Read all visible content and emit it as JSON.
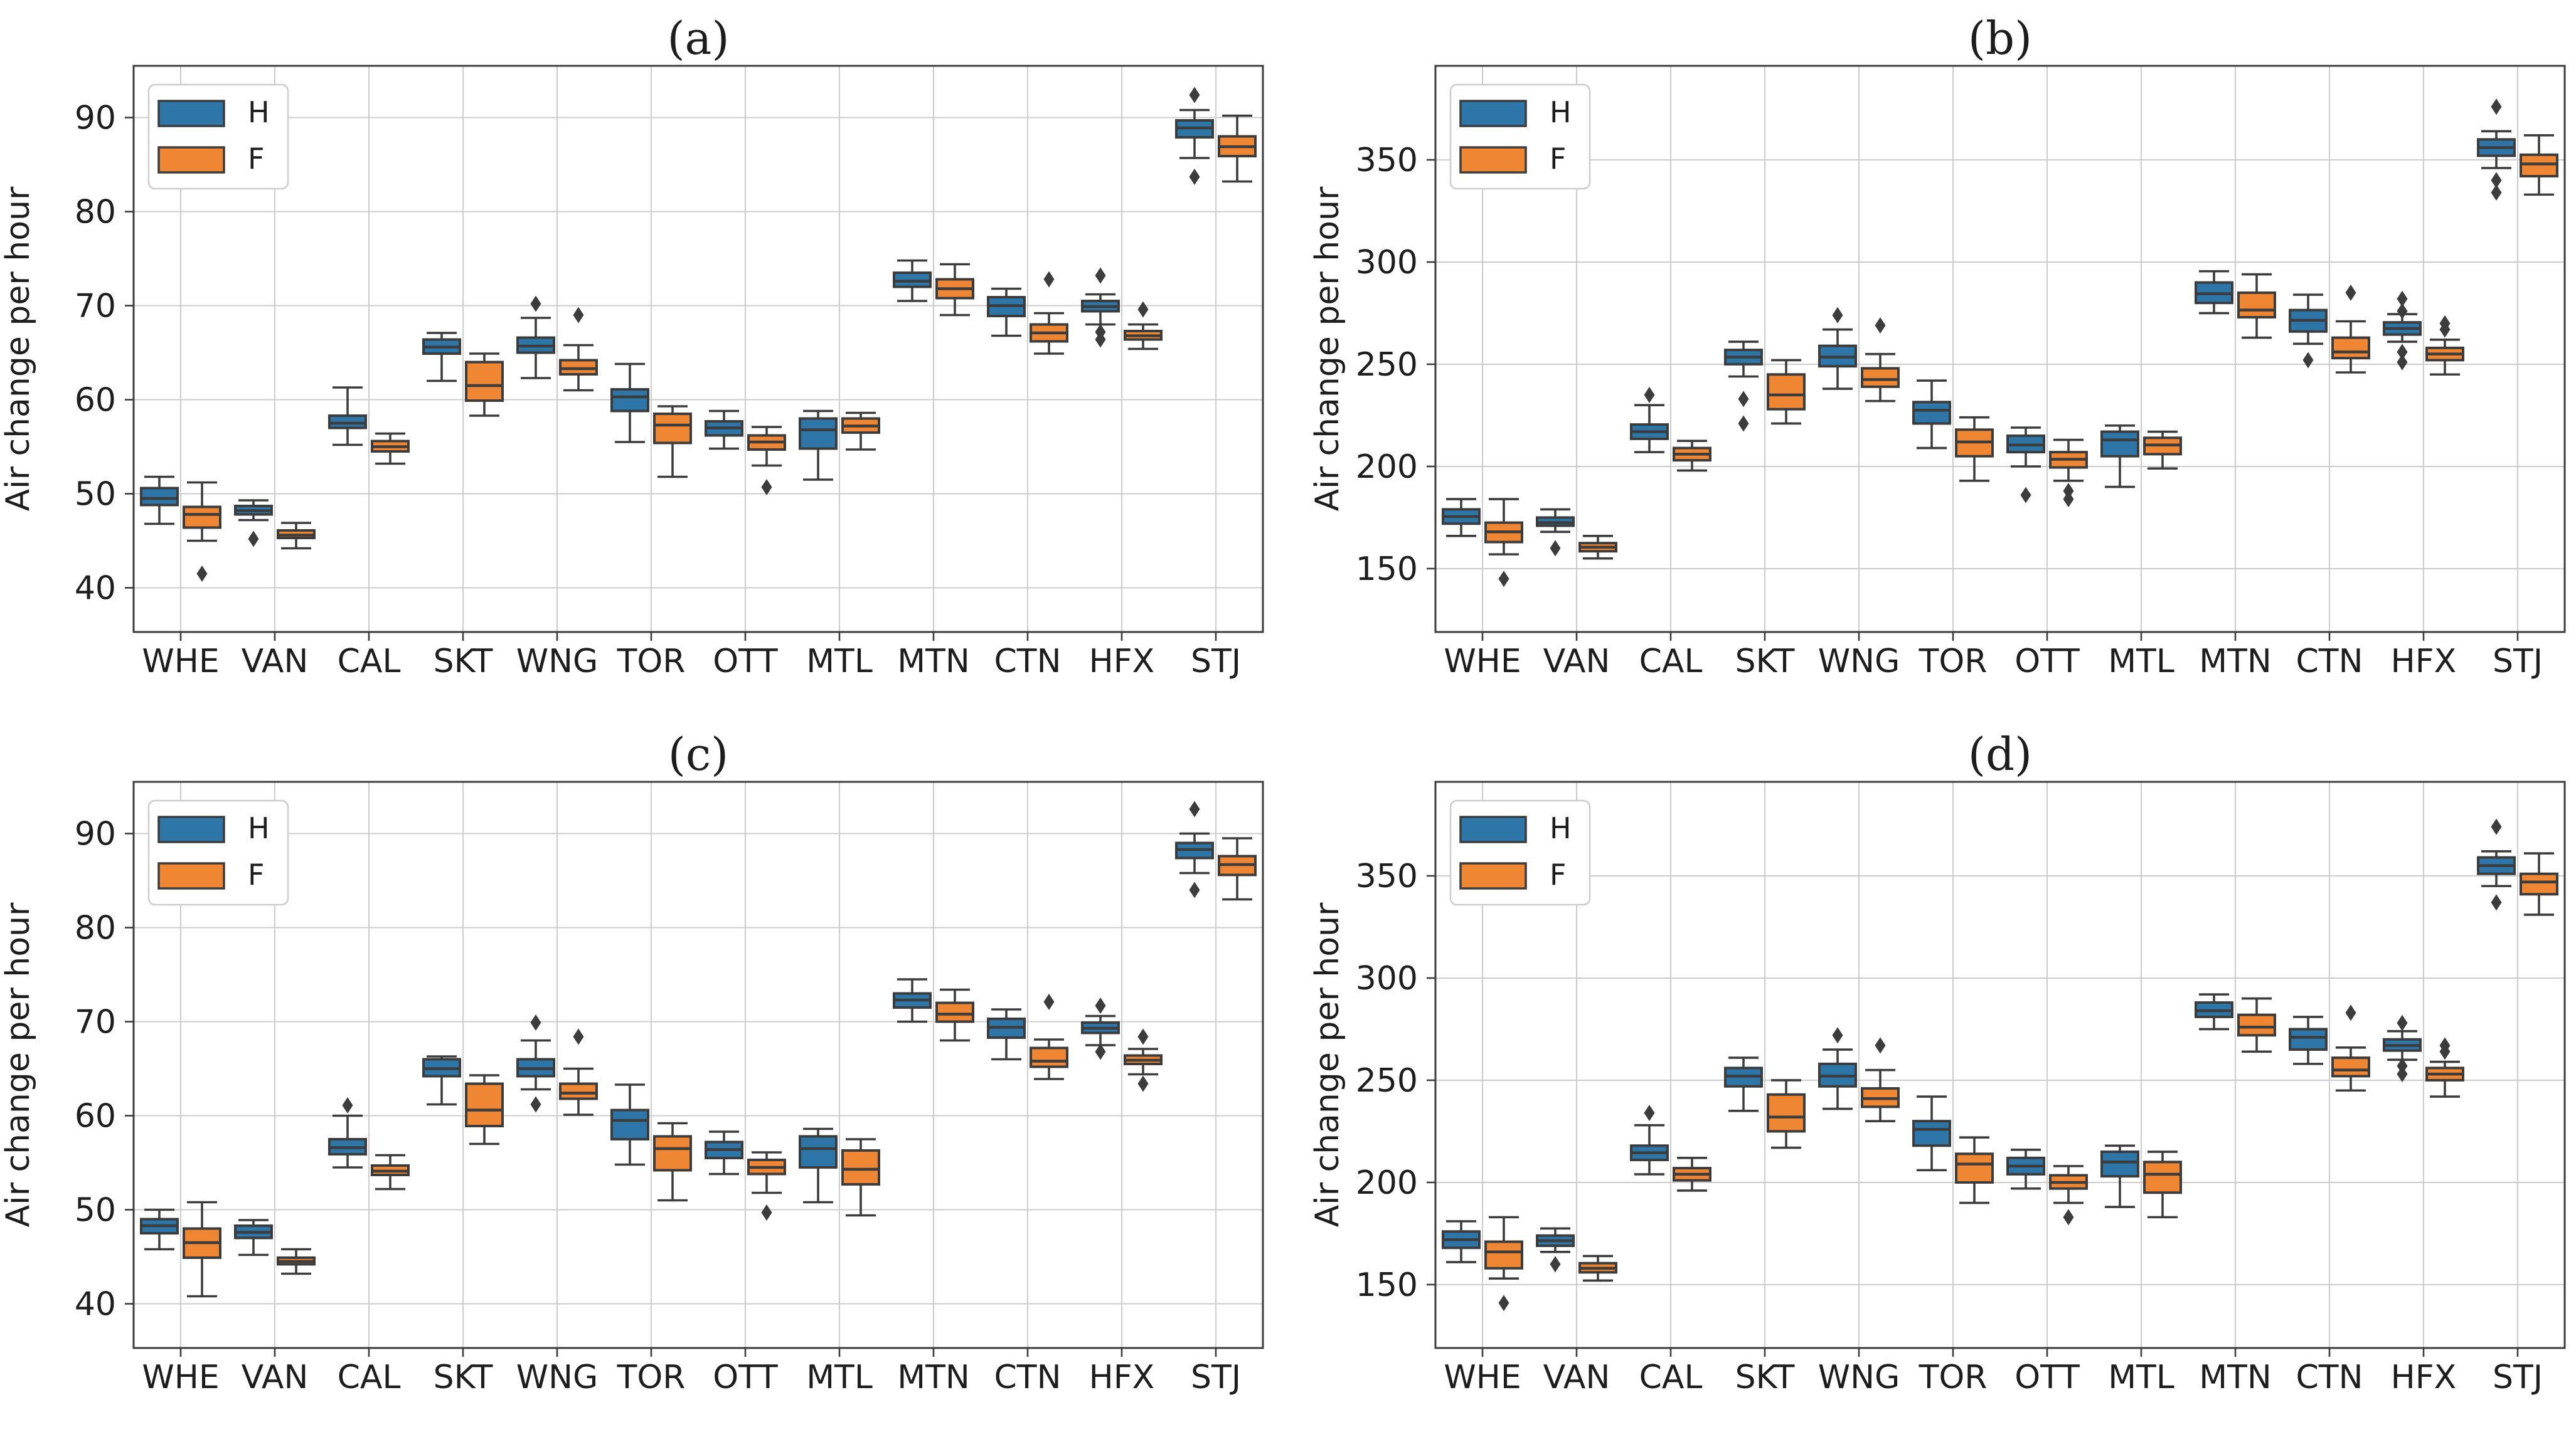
{
  "figure": {
    "type": "boxplot-grid",
    "rows": 2,
    "cols": 2,
    "background": "#ffffff"
  },
  "colors": {
    "series_h": "#2e76a8",
    "series_f": "#ee8634",
    "box_edge": "#3c3c3c",
    "median": "#3c3c3c",
    "whisker": "#3c3c3c",
    "outlier": "#3c3c3c",
    "grid": "#cccccc",
    "spine": "#3c3c3c",
    "text": "#1d1d1d",
    "legend_border": "#cccccc",
    "legend_bg": "#ffffff"
  },
  "chart_data": [
    {
      "type": "bar",
      "subtype": "grouped-boxplot",
      "label": "(a)",
      "ylabel": "Air change per hour",
      "xlabel": "",
      "ylim": [
        35.3,
        95.5
      ],
      "yticks": [
        40,
        50,
        60,
        70,
        80,
        90
      ],
      "grid": true,
      "legend_position": "upper-left",
      "categories": [
        "WHE",
        "VAN",
        "CAL",
        "SKT",
        "WNG",
        "TOR",
        "OTT",
        "MTL",
        "MTN",
        "CTN",
        "HFX",
        "STJ"
      ],
      "series": [
        {
          "name": "H",
          "color": "#2e76a8",
          "boxes": [
            [
              46.8,
              48.8,
              49.5,
              50.6,
              51.8,
              []
            ],
            [
              47.2,
              47.8,
              48.2,
              48.7,
              49.3,
              [
                45.2
              ]
            ],
            [
              55.2,
              57.0,
              57.5,
              58.3,
              61.3,
              []
            ],
            [
              62.0,
              64.9,
              65.6,
              66.4,
              67.1,
              []
            ],
            [
              62.3,
              65.0,
              65.7,
              66.6,
              68.7,
              [
                70.2
              ]
            ],
            [
              55.5,
              58.8,
              60.3,
              61.1,
              63.8,
              []
            ],
            [
              54.8,
              56.2,
              57.0,
              57.7,
              58.8,
              []
            ],
            [
              51.5,
              54.8,
              56.8,
              58.0,
              58.8,
              []
            ],
            [
              70.5,
              72.0,
              72.6,
              73.5,
              74.8,
              []
            ],
            [
              66.8,
              68.9,
              70.0,
              70.9,
              71.8,
              []
            ],
            [
              68.0,
              69.4,
              69.9,
              70.5,
              71.2,
              [
                73.2,
                67.2,
                66.4
              ]
            ],
            [
              85.7,
              87.9,
              88.9,
              89.7,
              90.8,
              [
                92.4,
                83.7
              ]
            ]
          ]
        },
        {
          "name": "F",
          "color": "#ee8634",
          "boxes": [
            [
              45.0,
              46.4,
              47.8,
              48.6,
              51.2,
              [
                41.5
              ]
            ],
            [
              44.2,
              45.3,
              45.6,
              46.1,
              46.9,
              []
            ],
            [
              53.2,
              54.5,
              55.0,
              55.6,
              56.4,
              []
            ],
            [
              58.3,
              59.9,
              61.5,
              64.0,
              64.9,
              []
            ],
            [
              61.0,
              62.7,
              63.3,
              64.2,
              65.8,
              [
                69.0
              ]
            ],
            [
              51.8,
              55.4,
              57.3,
              58.5,
              59.3,
              []
            ],
            [
              53.0,
              54.7,
              55.5,
              56.2,
              57.1,
              [
                50.7
              ]
            ],
            [
              54.7,
              56.5,
              57.2,
              58.0,
              58.6,
              []
            ],
            [
              69.0,
              70.8,
              71.8,
              72.8,
              74.4,
              []
            ],
            [
              64.9,
              66.2,
              67.1,
              68.0,
              69.2,
              [
                72.8
              ]
            ],
            [
              65.4,
              66.4,
              66.8,
              67.3,
              68.0,
              [
                69.6
              ]
            ],
            [
              83.2,
              85.9,
              86.9,
              88.0,
              90.2,
              []
            ]
          ]
        }
      ]
    },
    {
      "type": "bar",
      "subtype": "grouped-boxplot",
      "label": "(b)",
      "ylabel": "Air change per hour",
      "xlabel": "",
      "ylim": [
        119,
        396
      ],
      "yticks": [
        150,
        200,
        250,
        300,
        350
      ],
      "grid": true,
      "legend_position": "upper-left",
      "categories": [
        "WHE",
        "VAN",
        "CAL",
        "SKT",
        "WNG",
        "TOR",
        "OTT",
        "MTL",
        "MTN",
        "CTN",
        "HFX",
        "STJ"
      ],
      "series": [
        {
          "name": "H",
          "color": "#2e76a8",
          "boxes": [
            [
              166,
              172,
              175.5,
              179,
              184,
              []
            ],
            [
              168,
              171,
              172.5,
              175,
              179,
              [
                160
              ]
            ],
            [
              207,
              213.5,
              217,
              220.5,
              230,
              [
                235
              ]
            ],
            [
              244,
              250,
              253.5,
              257,
              261,
              [
                233,
                221
              ]
            ],
            [
              238,
              249,
              253.5,
              259,
              267,
              [
                274
              ]
            ],
            [
              209,
              221,
              227.5,
              231.5,
              242,
              []
            ],
            [
              200,
              207,
              210.5,
              215,
              219,
              [
                186
              ]
            ],
            [
              190,
              205,
              213,
              217,
              220,
              []
            ],
            [
              275,
              280,
              284.5,
              290,
              295.5,
              []
            ],
            [
              260,
              266,
              271.5,
              276.5,
              284,
              [
                252
              ]
            ],
            [
              261,
              264.5,
              267.5,
              270.5,
              274.5,
              [
                282,
                276,
                256,
                251
              ]
            ],
            [
              346,
              352,
              356,
              360,
              364,
              [
                376,
                340,
                334
              ]
            ]
          ]
        },
        {
          "name": "F",
          "color": "#ee8634",
          "boxes": [
            [
              157,
              163,
              168,
              172.5,
              184,
              [
                145
              ]
            ],
            [
              155,
              158.5,
              160.5,
              162.5,
              166,
              []
            ],
            [
              198,
              203,
              206,
              209,
              212.5,
              []
            ],
            [
              221,
              228,
              235,
              245,
              252,
              []
            ],
            [
              232,
              239,
              242.5,
              248,
              255,
              [
                269
              ]
            ],
            [
              193,
              205,
              212,
              218,
              224,
              []
            ],
            [
              193,
              199.5,
              203.5,
              207,
              213,
              [
                188,
                184
              ]
            ],
            [
              199,
              206,
              210.5,
              214,
              217,
              []
            ],
            [
              263,
              273,
              276.5,
              285,
              294,
              []
            ],
            [
              246,
              253,
              256,
              263,
              271,
              [
                285
              ]
            ],
            [
              245,
              252,
              255,
              258,
              262,
              [
                270,
                267
              ]
            ],
            [
              333,
              342,
              348,
              352.5,
              362,
              []
            ]
          ]
        }
      ]
    },
    {
      "type": "bar",
      "subtype": "grouped-boxplot",
      "label": "(c)",
      "ylabel": "Air change per hour",
      "xlabel": "",
      "ylim": [
        35.3,
        95.5
      ],
      "yticks": [
        40,
        50,
        60,
        70,
        80,
        90
      ],
      "grid": true,
      "legend_position": "upper-left",
      "categories": [
        "WHE",
        "VAN",
        "CAL",
        "SKT",
        "WNG",
        "TOR",
        "OTT",
        "MTL",
        "MTN",
        "CTN",
        "HFX",
        "STJ"
      ],
      "series": [
        {
          "name": "H",
          "color": "#2e76a8",
          "boxes": [
            [
              45.8,
              47.5,
              48.3,
              49.0,
              50.0,
              []
            ],
            [
              45.2,
              47.0,
              47.6,
              48.3,
              48.9,
              []
            ],
            [
              54.5,
              55.9,
              56.6,
              57.5,
              60.0,
              [
                61.1
              ]
            ],
            [
              61.2,
              64.2,
              65.0,
              66.0,
              66.3,
              []
            ],
            [
              62.8,
              64.2,
              65.0,
              66.0,
              68.0,
              [
                69.9,
                61.2
              ]
            ],
            [
              54.8,
              57.5,
              59.5,
              60.6,
              63.3,
              []
            ],
            [
              53.8,
              55.5,
              56.4,
              57.2,
              58.3,
              []
            ],
            [
              50.8,
              54.5,
              56.5,
              57.8,
              58.6,
              []
            ],
            [
              70.0,
              71.5,
              72.3,
              73.0,
              74.5,
              []
            ],
            [
              66.0,
              68.3,
              69.4,
              70.3,
              71.3,
              []
            ],
            [
              67.5,
              68.8,
              69.3,
              69.9,
              70.6,
              [
                71.7,
                66.8
              ]
            ],
            [
              85.8,
              87.4,
              88.3,
              89.0,
              90.0,
              [
                92.6,
                84.0
              ]
            ]
          ]
        },
        {
          "name": "F",
          "color": "#ee8634",
          "boxes": [
            [
              40.8,
              44.9,
              46.5,
              48.0,
              50.8,
              []
            ],
            [
              43.2,
              44.2,
              44.5,
              44.9,
              45.8,
              []
            ],
            [
              52.2,
              53.7,
              54.1,
              54.7,
              55.8,
              []
            ],
            [
              57.0,
              58.9,
              60.6,
              63.4,
              64.3,
              []
            ],
            [
              60.1,
              61.8,
              62.4,
              63.4,
              65.0,
              [
                68.4
              ]
            ],
            [
              51.0,
              54.2,
              56.5,
              57.8,
              59.2,
              []
            ],
            [
              51.8,
              53.8,
              54.5,
              55.3,
              56.1,
              [
                49.7
              ]
            ],
            [
              49.4,
              52.7,
              54.3,
              56.3,
              57.5,
              []
            ],
            [
              68.0,
              70.0,
              70.8,
              72.0,
              73.4,
              []
            ],
            [
              63.9,
              65.2,
              65.8,
              67.2,
              68.1,
              [
                72.1
              ]
            ],
            [
              64.4,
              65.5,
              65.9,
              66.4,
              67.1,
              [
                68.4,
                63.4
              ]
            ],
            [
              83.0,
              85.6,
              86.7,
              87.6,
              89.5,
              []
            ]
          ]
        }
      ]
    },
    {
      "type": "bar",
      "subtype": "grouped-boxplot",
      "label": "(d)",
      "ylabel": "Air change per hour",
      "xlabel": "",
      "ylim": [
        119,
        396
      ],
      "yticks": [
        150,
        200,
        250,
        300,
        350
      ],
      "grid": true,
      "legend_position": "upper-left",
      "categories": [
        "WHE",
        "VAN",
        "CAL",
        "SKT",
        "WNG",
        "TOR",
        "OTT",
        "MTL",
        "MTN",
        "CTN",
        "HFX",
        "STJ"
      ],
      "series": [
        {
          "name": "H",
          "color": "#2e76a8",
          "boxes": [
            [
              161,
              168,
              172,
              176,
              181,
              []
            ],
            [
              166,
              169,
              171.5,
              174,
              177.5,
              [
                160
              ]
            ],
            [
              204,
              211,
              214.5,
              218,
              228,
              [
                234
              ]
            ],
            [
              235,
              247,
              252,
              256,
              261,
              []
            ],
            [
              236,
              247,
              252,
              258,
              265,
              [
                272
              ]
            ],
            [
              206,
              218,
              226,
              230,
              242,
              []
            ],
            [
              197,
              204,
              208,
              212,
              216,
              []
            ],
            [
              188,
              203,
              210,
              215,
              218,
              []
            ],
            [
              275,
              281,
              284,
              288,
              292,
              []
            ],
            [
              258,
              265,
              271,
              275,
              281,
              []
            ],
            [
              260,
              264.5,
              267,
              270,
              274,
              [
                278,
                257,
                253
              ]
            ],
            [
              345,
              351,
              355,
              359,
              362,
              [
                374,
                337
              ]
            ]
          ]
        },
        {
          "name": "F",
          "color": "#ee8634",
          "boxes": [
            [
              153,
              158,
              166,
              171,
              183,
              [
                141
              ]
            ],
            [
              152,
              156,
              158,
              160.5,
              164,
              []
            ],
            [
              196,
              201,
              204,
              207,
              212,
              []
            ],
            [
              217,
              225,
              232,
              243,
              250,
              []
            ],
            [
              230,
              237,
              241,
              246,
              255,
              [
                267
              ]
            ],
            [
              190,
              200,
              209,
              214,
              222,
              []
            ],
            [
              190,
              197,
              200,
              203.5,
              208,
              [
                183
              ]
            ],
            [
              183,
              195,
              204,
              210,
              215,
              []
            ],
            [
              264,
              272,
              276,
              282,
              290,
              []
            ],
            [
              245,
              252,
              255,
              261,
              266,
              [
                283
              ]
            ],
            [
              242,
              250,
              253,
              256,
              259,
              [
                267,
                264
              ]
            ],
            [
              331,
              341,
              347,
              351,
              361,
              []
            ]
          ]
        }
      ]
    }
  ]
}
